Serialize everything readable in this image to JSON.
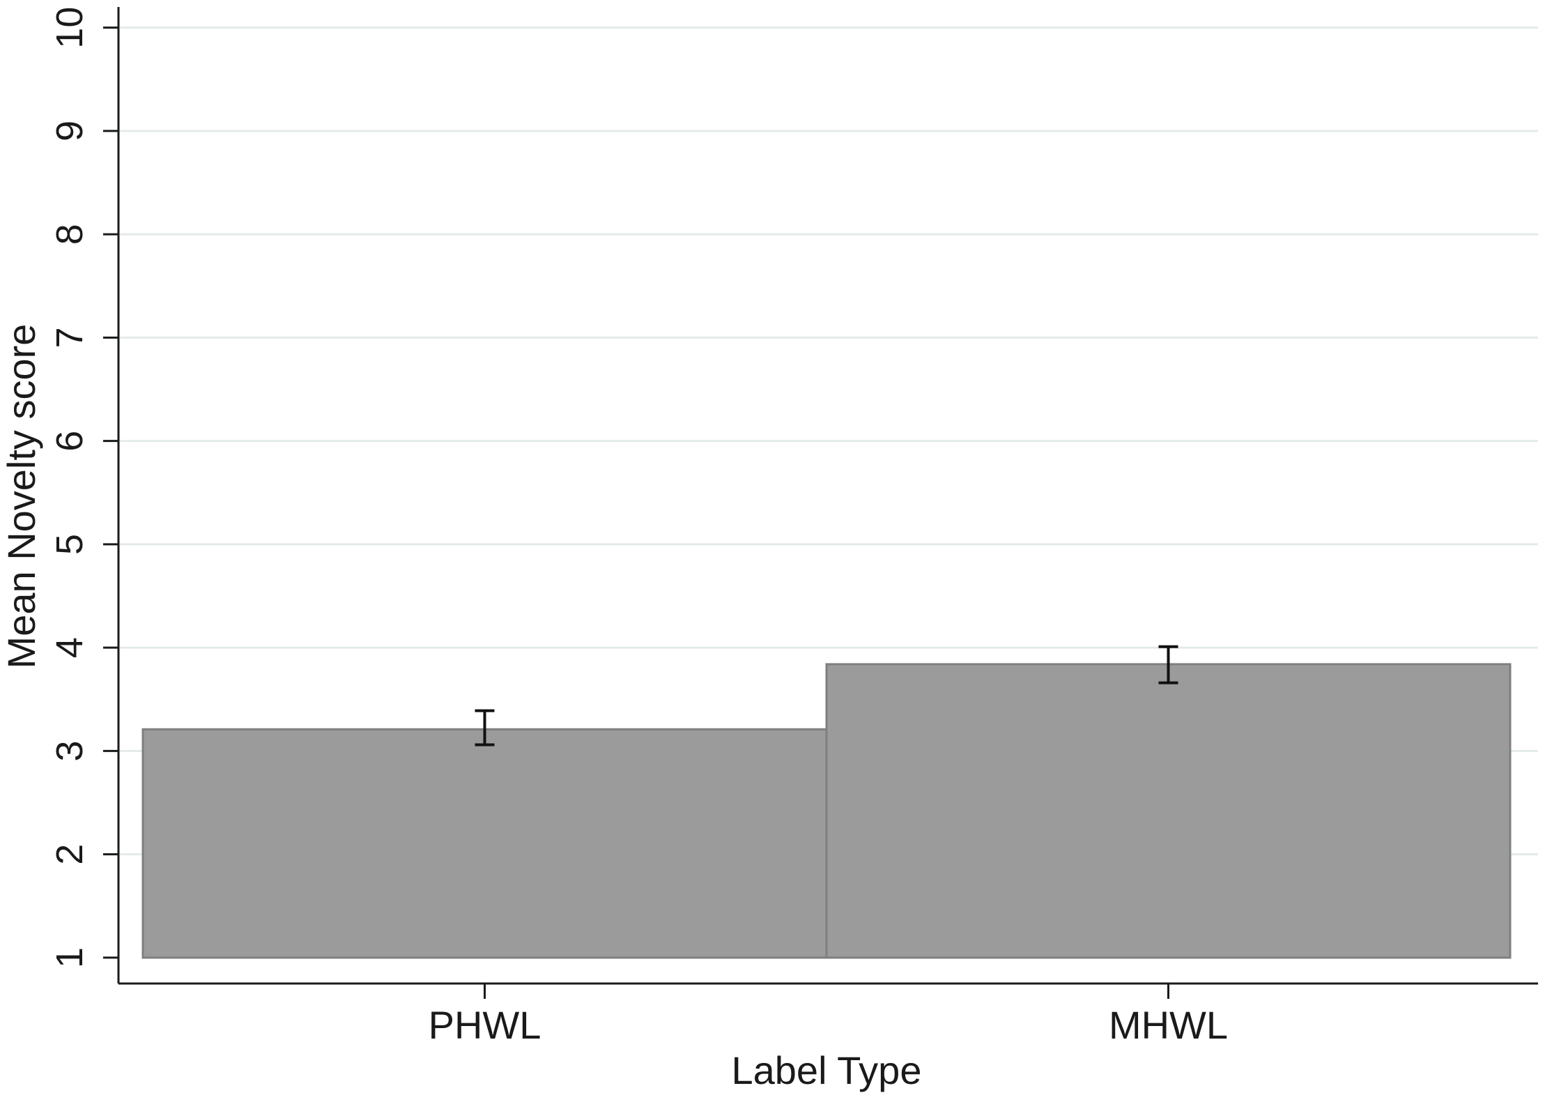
{
  "chart_data": {
    "type": "bar",
    "title": "",
    "xlabel": "Label Type",
    "ylabel": "Mean Novelty score",
    "categories": [
      "PHWL",
      "MHWL"
    ],
    "values": [
      3.21,
      3.84
    ],
    "error_bars": [
      {
        "low": 3.06,
        "high": 3.39
      },
      {
        "low": 3.66,
        "high": 4.01
      }
    ],
    "ylim": [
      0.75,
      10.2
    ],
    "bar_baseline": 1,
    "yticks": [
      1,
      2,
      3,
      4,
      5,
      6,
      7,
      8,
      9,
      10
    ],
    "ytick_labels": [
      "1",
      "2",
      "3",
      "4",
      "5",
      "6",
      "7",
      "8",
      "9",
      "10"
    ],
    "grid": true,
    "legend": "none",
    "colors": {
      "bar_fill": "#9b9b9b",
      "bar_edge": "#7f7f7f",
      "grid": "#e3ebe8",
      "axis": "#1a1a1a"
    }
  }
}
